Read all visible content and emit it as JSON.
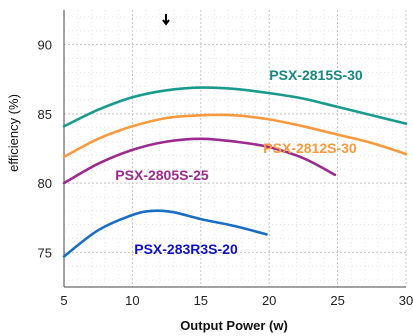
{
  "chart_data": {
    "type": "line",
    "title": "",
    "xlabel": "Output Power (w)",
    "ylabel": "efficiency (%)",
    "xlim": [
      5,
      30
    ],
    "ylim": [
      72.5,
      92.5
    ],
    "x_ticks": [
      5,
      10,
      15,
      20,
      25,
      30
    ],
    "y_ticks": [
      75,
      80,
      85,
      90
    ],
    "grid": true,
    "legend": "inline labels next to curves",
    "series": [
      {
        "name": "PSX-2815S-30",
        "color": "#1a9a8e",
        "label_color": "#16887e",
        "x": [
          5,
          7.5,
          10,
          12.5,
          15,
          17.5,
          20,
          22.5,
          25,
          27.5,
          30
        ],
        "y": [
          84.1,
          85.3,
          86.2,
          86.7,
          86.9,
          86.8,
          86.5,
          86.1,
          85.5,
          84.9,
          84.3
        ]
      },
      {
        "name": "PSX-2812S-30",
        "color": "#f79a3e",
        "label_color": "#f79a3e",
        "x": [
          5,
          7.5,
          10,
          12.5,
          15,
          17.5,
          20,
          22.5,
          25,
          27.5,
          30
        ],
        "y": [
          81.9,
          83.2,
          84.1,
          84.7,
          84.9,
          84.9,
          84.6,
          84.1,
          83.5,
          82.9,
          82.1
        ]
      },
      {
        "name": "PSX-2805S-25",
        "color": "#9c2b8e",
        "label_color": "#9c2b8e",
        "x": [
          5,
          7.5,
          10,
          12.5,
          15,
          17.5,
          20,
          22.5,
          24.8
        ],
        "y": [
          80.0,
          81.4,
          82.4,
          83.0,
          83.2,
          83.0,
          82.6,
          81.8,
          80.6
        ]
      },
      {
        "name": "PSX-283R3S-20",
        "color": "#1a6dc4",
        "label_color": "#1010c8",
        "x": [
          5,
          7.5,
          10,
          11.5,
          13,
          15,
          17.5,
          19.8
        ],
        "y": [
          74.7,
          76.6,
          77.7,
          78.0,
          77.9,
          77.4,
          76.9,
          76.3
        ]
      }
    ]
  }
}
